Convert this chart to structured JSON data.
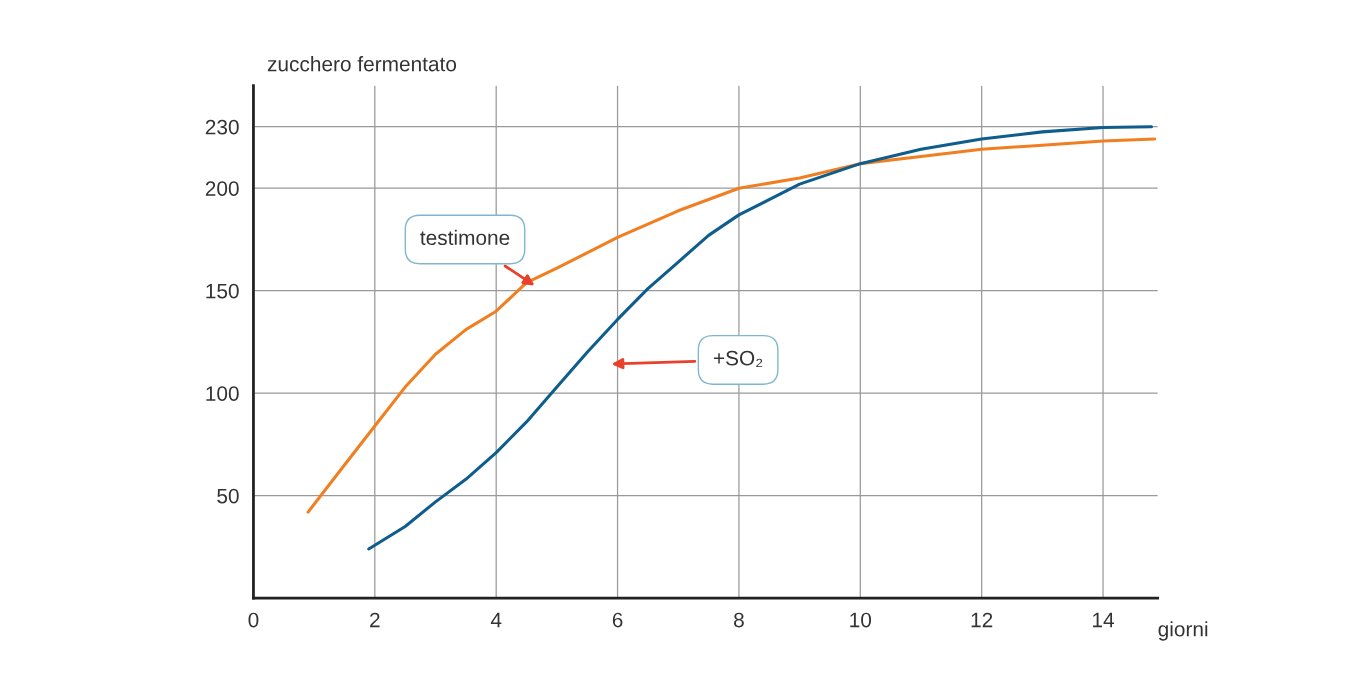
{
  "chart_data": {
    "type": "line",
    "xlabel": "giorni",
    "ylabel": "zucchero fermentato",
    "xlim": [
      0,
      14.9
    ],
    "ylim": [
      0,
      250
    ],
    "xticks": [
      0,
      2,
      4,
      6,
      8,
      10,
      12,
      14
    ],
    "yticks": [
      50,
      100,
      150,
      200,
      230
    ],
    "grid": true,
    "legend": false,
    "line_style": "solid",
    "marker": "none",
    "series": [
      {
        "color": "#f07f22",
        "x": [
          0.9,
          1.5,
          2,
          2.5,
          3,
          3.5,
          4,
          4.5,
          5,
          6,
          7,
          8,
          9,
          10,
          11,
          12,
          13,
          14,
          14.85
        ],
        "values": [
          42,
          65,
          84,
          103,
          119,
          131,
          140,
          154,
          161,
          176,
          189,
          200,
          205,
          212,
          215.5,
          219,
          221,
          223,
          224
        ]
      },
      {
        "color": "#0f5d8c",
        "x": [
          1.9,
          2.5,
          3,
          3.5,
          4,
          4.5,
          5,
          5.5,
          6,
          6.5,
          7,
          7.5,
          8,
          9,
          10,
          11,
          12,
          13,
          14,
          14.8
        ],
        "values": [
          24,
          35,
          47,
          58,
          71,
          86,
          103,
          120,
          136,
          151,
          164,
          177,
          187,
          202,
          212,
          219,
          224,
          227.5,
          229.6,
          230
        ]
      }
    ],
    "annotations": [
      "testimone",
      "+SO₂"
    ]
  }
}
